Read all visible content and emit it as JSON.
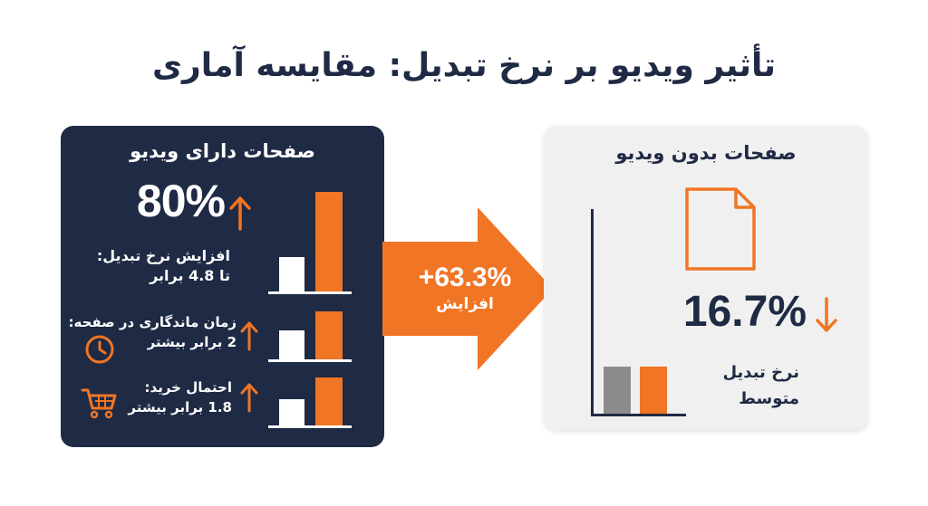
{
  "title": "تأثیر ویدیو بر نرخ تبدیل: مقایسه آماری",
  "with_video": {
    "heading": "صفحات دارای ویدیو",
    "headline_value": "80%",
    "stats": [
      {
        "line1": "افزایش نرخ تبدیل:",
        "line2": "تا 4.8 برابر",
        "icon": "up-arrow-icon",
        "relative_levels": [
          0.3,
          1.0
        ]
      },
      {
        "line1": "زمان ماندگاری در صفحه:",
        "line2": "2 برابر بیشتر",
        "icon": "clock-icon",
        "relative_levels": [
          0.5,
          1.0
        ]
      },
      {
        "line1": "احتمال خرید:",
        "line2": "1.8 برابر بیشتر",
        "icon": "shopping-cart-icon",
        "relative_levels": [
          0.5,
          1.0
        ]
      }
    ]
  },
  "increase": {
    "value": "+63.3%",
    "label": "افزایش"
  },
  "without_video": {
    "heading": "صفحات بدون ویدیو",
    "value": "16.7%",
    "label_line1": "نرخ تبدیل",
    "label_line2": "متوسط",
    "icon": "document-icon",
    "relative_levels": [
      1.0,
      1.0
    ]
  },
  "colors": {
    "navy": "#1f2a44",
    "orange": "#f07524",
    "panel_grey": "#f0f0f0",
    "bar_grey": "#8c8c8c"
  }
}
